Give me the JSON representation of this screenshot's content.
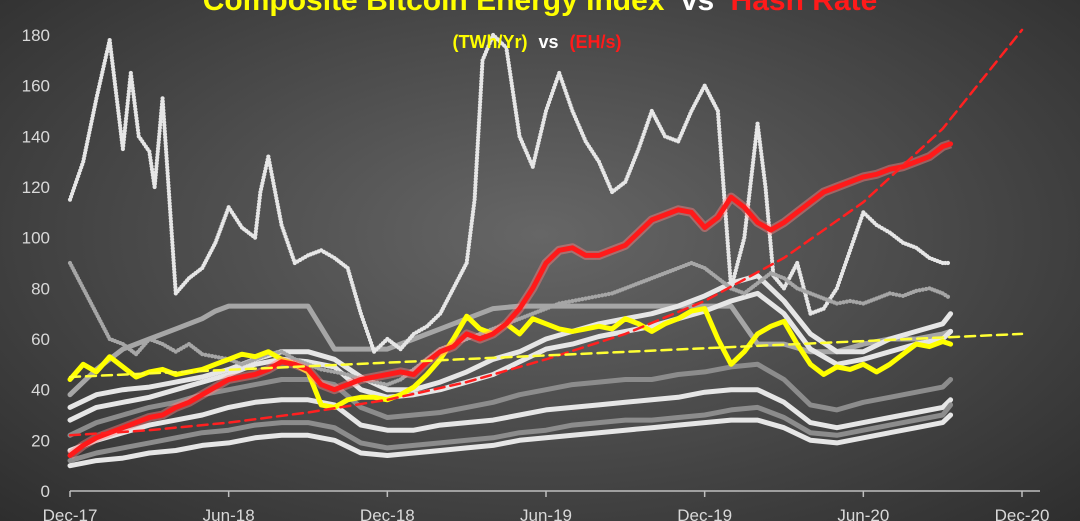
{
  "chart_data": {
    "type": "line",
    "title_part1": "Composite Bitcoin Energy Index",
    "title_vs": "vs",
    "title_part2": "Hash Rate",
    "subtitle_part1": "(TWh/Yr)",
    "subtitle_vs": "vs",
    "subtitle_part2": "(EH/s)",
    "ylim": [
      0,
      180
    ],
    "y_ticks": [
      0,
      20,
      40,
      60,
      80,
      100,
      120,
      140,
      160,
      180
    ],
    "x_ticks": [
      "Dec-17",
      "Jun-18",
      "Dec-18",
      "Jun-19",
      "Dec-19",
      "Jun-20",
      "Dec-20"
    ],
    "xlim_months": [
      0,
      36
    ],
    "grid": false,
    "colors": {
      "composite": "#ffff00",
      "hash_rate": "#ff1a1a",
      "hash_trend": "#ff2020",
      "composite_trend": "#ffff33",
      "components_light": "#e6e6e6",
      "components_mid": "#a6a6a6",
      "components_dark": "#8c8c8c",
      "title_white": "#ffffff",
      "axis": "#bfbfbf"
    },
    "series": [
      {
        "name": "(TWh/Yr)",
        "role": "composite",
        "style": "thick-line",
        "x": [
          0,
          0.5,
          1,
          1.5,
          2,
          2.5,
          3,
          3.5,
          4,
          4.5,
          5,
          5.5,
          6,
          6.5,
          7,
          7.5,
          8,
          8.5,
          9,
          9.5,
          10,
          10.5,
          11,
          11.5,
          12,
          12.5,
          13,
          13.5,
          14,
          14.5,
          15,
          15.5,
          16,
          16.5,
          17,
          17.5,
          18,
          18.5,
          19,
          19.5,
          20,
          20.5,
          21,
          21.5,
          22,
          22.5,
          23,
          23.5,
          24,
          24.5,
          25,
          25.5,
          26,
          26.5,
          27,
          27.5,
          28,
          28.5,
          29,
          29.5,
          30,
          30.5,
          31,
          31.5,
          32,
          32.5,
          33,
          33.3
        ],
        "values": [
          44,
          50,
          47,
          53,
          49,
          45,
          47,
          48,
          46,
          47,
          48,
          50,
          52,
          54,
          53,
          55,
          52,
          50,
          47,
          34,
          33,
          36,
          37,
          37,
          36,
          38,
          41,
          46,
          52,
          60,
          69,
          64,
          62,
          66,
          62,
          68,
          66,
          64,
          63,
          64,
          65,
          64,
          68,
          66,
          63,
          66,
          68,
          71,
          72,
          60,
          50,
          55,
          62,
          65,
          67,
          58,
          50,
          46,
          49,
          48,
          50,
          47,
          50,
          54,
          58,
          57,
          59,
          58
        ]
      },
      {
        "name": "(EH/s)",
        "role": "hash_rate",
        "style": "thick-line",
        "x": [
          0,
          0.5,
          1,
          1.5,
          2,
          2.5,
          3,
          3.5,
          4,
          4.5,
          5,
          5.5,
          6,
          6.5,
          7,
          7.5,
          8,
          8.5,
          9,
          9.5,
          10,
          10.5,
          11,
          11.5,
          12,
          12.5,
          13,
          13.5,
          14,
          14.5,
          15,
          15.5,
          16,
          16.5,
          17,
          17.5,
          18,
          18.5,
          19,
          19.5,
          20,
          20.5,
          21,
          21.5,
          22,
          22.5,
          23,
          23.5,
          24,
          24.5,
          25,
          25.5,
          26,
          26.5,
          27,
          27.5,
          28,
          28.5,
          29,
          29.5,
          30,
          30.5,
          31,
          31.5,
          32,
          32.5,
          33,
          33.3
        ],
        "values": [
          14,
          18,
          21,
          23,
          25,
          27,
          29,
          30,
          33,
          35,
          38,
          41,
          44,
          45,
          46,
          48,
          51,
          50,
          48,
          42,
          40,
          42,
          44,
          45,
          46,
          47,
          46,
          51,
          55,
          57,
          62,
          60,
          62,
          66,
          72,
          80,
          90,
          95,
          96,
          93,
          93,
          95,
          97,
          102,
          107,
          109,
          111,
          110,
          104,
          108,
          116,
          112,
          106,
          103,
          106,
          110,
          114,
          118,
          120,
          122,
          124,
          125,
          127,
          128,
          130,
          132,
          136,
          137
        ]
      },
      {
        "name": "",
        "role": "hash_trend",
        "style": "dashed",
        "x": [
          0,
          3,
          6,
          9,
          12,
          15,
          18,
          21,
          24,
          27,
          30,
          33,
          36
        ],
        "values": [
          22,
          24,
          27,
          31,
          36,
          43,
          52,
          62,
          75,
          92,
          114,
          143,
          182
        ]
      },
      {
        "name": "",
        "role": "composite_trend",
        "style": "dashed",
        "x": [
          0,
          36
        ],
        "values": [
          45,
          62
        ]
      },
      {
        "name": "",
        "role": "component",
        "style": "thick-line",
        "shade": "mid",
        "x": [
          0,
          1,
          2,
          3,
          4,
          5,
          5.5,
          6,
          7,
          8,
          9,
          10,
          11,
          12,
          13,
          14,
          15,
          16,
          17,
          18,
          19,
          20,
          21,
          22,
          23,
          24,
          25,
          26,
          27,
          28,
          29,
          30,
          31,
          32,
          33,
          33.3
        ],
        "values": [
          38,
          48,
          56,
          60,
          64,
          68,
          71,
          73,
          73,
          73,
          73,
          56,
          56,
          56,
          60,
          64,
          68,
          72,
          73,
          73,
          73,
          73,
          73,
          73,
          73,
          73,
          73,
          58,
          58,
          55,
          55,
          58,
          60,
          60,
          62,
          63
        ]
      },
      {
        "name": "",
        "role": "component",
        "style": "thick-line",
        "shade": "light",
        "x": [
          0,
          1,
          2,
          3,
          4,
          5,
          6,
          7,
          8,
          9,
          10,
          11,
          12,
          13,
          14,
          15,
          16,
          17,
          18,
          19,
          20,
          21,
          22,
          23,
          24,
          25,
          26,
          27,
          28,
          29,
          30,
          31,
          32,
          33,
          33.3
        ],
        "values": [
          33,
          38,
          40,
          41,
          43,
          45,
          48,
          52,
          55,
          55,
          52,
          45,
          40,
          40,
          43,
          47,
          52,
          55,
          60,
          63,
          66,
          68,
          70,
          73,
          77,
          82,
          85,
          75,
          62,
          55,
          55,
          60,
          63,
          66,
          70
        ]
      },
      {
        "name": "",
        "role": "component",
        "style": "thick-line",
        "shade": "light",
        "x": [
          0,
          1,
          2,
          3,
          4,
          5,
          6,
          7,
          8,
          9,
          10,
          11,
          12,
          13,
          14,
          15,
          16,
          17,
          18,
          19,
          20,
          21,
          22,
          23,
          24,
          25,
          26,
          27,
          28,
          29,
          30,
          31,
          32,
          33,
          33.3
        ],
        "values": [
          28,
          33,
          35,
          37,
          40,
          43,
          46,
          50,
          52,
          51,
          49,
          40,
          37,
          38,
          40,
          43,
          46,
          51,
          56,
          58,
          61,
          63,
          65,
          68,
          71,
          75,
          78,
          70,
          56,
          50,
          52,
          55,
          58,
          60,
          63
        ]
      },
      {
        "name": "",
        "role": "component",
        "style": "thick-line",
        "shade": "dark",
        "x": [
          0,
          1,
          2,
          3,
          4,
          5,
          6,
          7,
          8,
          9,
          10,
          11,
          12,
          13,
          14,
          15,
          16,
          17,
          18,
          19,
          20,
          21,
          22,
          23,
          24,
          25,
          26,
          27,
          28,
          29,
          30,
          31,
          32,
          33,
          33.3
        ],
        "values": [
          22,
          27,
          30,
          33,
          35,
          38,
          40,
          42,
          44,
          44,
          42,
          33,
          29,
          30,
          31,
          33,
          35,
          38,
          40,
          42,
          43,
          44,
          44,
          46,
          47,
          49,
          50,
          44,
          34,
          32,
          35,
          37,
          39,
          41,
          44
        ]
      },
      {
        "name": "",
        "role": "component",
        "style": "thick-line",
        "shade": "light",
        "x": [
          0,
          1,
          2,
          3,
          4,
          5,
          6,
          7,
          8,
          9,
          10,
          11,
          12,
          13,
          14,
          15,
          16,
          17,
          18,
          19,
          20,
          21,
          22,
          23,
          24,
          25,
          26,
          27,
          28,
          29,
          30,
          31,
          32,
          33,
          33.3
        ],
        "values": [
          16,
          20,
          23,
          26,
          28,
          30,
          33,
          35,
          36,
          36,
          34,
          26,
          24,
          24,
          26,
          27,
          28,
          30,
          32,
          33,
          34,
          35,
          36,
          37,
          39,
          40,
          40,
          35,
          27,
          25,
          27,
          29,
          31,
          33,
          36
        ]
      },
      {
        "name": "",
        "role": "component",
        "style": "thick-line",
        "shade": "dark",
        "x": [
          0,
          1,
          2,
          3,
          4,
          5,
          6,
          7,
          8,
          9,
          10,
          11,
          12,
          13,
          14,
          15,
          16,
          17,
          18,
          19,
          20,
          21,
          22,
          23,
          24,
          25,
          26,
          27,
          28,
          29,
          30,
          31,
          32,
          33,
          33.3
        ],
        "values": [
          12,
          15,
          17,
          19,
          21,
          23,
          24,
          26,
          27,
          27,
          25,
          19,
          17,
          18,
          19,
          20,
          21,
          23,
          24,
          26,
          27,
          28,
          28,
          29,
          30,
          32,
          33,
          29,
          23,
          22,
          24,
          26,
          28,
          30,
          34
        ]
      },
      {
        "name": "",
        "role": "component",
        "style": "thick-line",
        "shade": "light",
        "x": [
          0,
          1,
          2,
          3,
          4,
          5,
          6,
          7,
          8,
          9,
          10,
          11,
          12,
          13,
          14,
          15,
          16,
          17,
          18,
          19,
          20,
          21,
          22,
          23,
          24,
          25,
          26,
          27,
          28,
          29,
          30,
          31,
          32,
          33,
          33.3
        ],
        "values": [
          10,
          12,
          13,
          15,
          16,
          18,
          19,
          21,
          22,
          22,
          20,
          15,
          14,
          15,
          16,
          17,
          18,
          20,
          21,
          22,
          23,
          24,
          25,
          26,
          27,
          28,
          28,
          25,
          20,
          19,
          21,
          23,
          25,
          27,
          30
        ]
      },
      {
        "name": "",
        "role": "component",
        "style": "dotted",
        "shade": "light",
        "x": [
          0,
          0.5,
          1,
          1.5,
          2,
          2.3,
          2.6,
          3,
          3.2,
          3.5,
          4,
          4.5,
          5,
          5.5,
          6,
          6.5,
          7,
          7.2,
          7.5,
          8,
          8.5,
          9,
          9.5,
          10,
          10.5,
          11,
          11.5,
          12,
          12.5,
          13,
          13.5,
          14,
          14.5,
          15,
          15.3,
          15.6,
          16,
          16.5,
          17,
          17.5,
          18,
          18.5,
          19,
          19.5,
          20,
          20.5,
          21,
          21.5,
          22,
          22.5,
          23,
          23.5,
          24,
          24.5,
          25,
          25.5,
          26,
          26.3,
          26.6,
          27,
          27.5,
          28,
          28.5,
          29,
          29.5,
          30,
          30.5,
          31,
          31.5,
          32,
          32.5,
          33,
          33.3
        ],
        "values": [
          115,
          130,
          155,
          178,
          135,
          165,
          140,
          134,
          120,
          155,
          78,
          84,
          88,
          98,
          112,
          104,
          100,
          118,
          132,
          105,
          90,
          93,
          95,
          92,
          88,
          70,
          55,
          60,
          56,
          62,
          65,
          70,
          80,
          90,
          115,
          170,
          180,
          175,
          140,
          128,
          150,
          165,
          150,
          138,
          130,
          118,
          122,
          135,
          150,
          140,
          138,
          150,
          160,
          150,
          80,
          100,
          145,
          120,
          85,
          80,
          90,
          70,
          72,
          80,
          95,
          110,
          105,
          102,
          98,
          96,
          92,
          90,
          90
        ]
      },
      {
        "name": "",
        "role": "component",
        "style": "dotted",
        "shade": "mid",
        "x": [
          0,
          0.5,
          1,
          1.5,
          2,
          2.5,
          3,
          3.5,
          4,
          4.5,
          5,
          5.5,
          6,
          6.5,
          7,
          7.5,
          8,
          8.5,
          9,
          9.5,
          10,
          10.5,
          11,
          11.5,
          12,
          12.5,
          13,
          13.5,
          14,
          14.5,
          15,
          15.5,
          16,
          16.5,
          17,
          17.5,
          18,
          18.5,
          19,
          19.5,
          20,
          20.5,
          21,
          21.5,
          22,
          22.5,
          23,
          23.5,
          24,
          24.5,
          25,
          25.5,
          26,
          26.5,
          27,
          27.5,
          28,
          28.5,
          29,
          29.5,
          30,
          30.5,
          31,
          31.5,
          32,
          32.5,
          33,
          33.3
        ],
        "values": [
          90,
          80,
          70,
          60,
          58,
          54,
          60,
          58,
          55,
          58,
          54,
          53,
          52,
          50,
          52,
          54,
          55,
          52,
          50,
          48,
          47,
          46,
          44,
          43,
          42,
          44,
          48,
          52,
          56,
          58,
          60,
          62,
          64,
          66,
          68,
          70,
          72,
          74,
          75,
          76,
          77,
          78,
          80,
          82,
          84,
          86,
          88,
          90,
          88,
          84,
          80,
          78,
          82,
          86,
          84,
          80,
          78,
          76,
          74,
          75,
          74,
          76,
          78,
          77,
          79,
          80,
          78,
          76
        ]
      }
    ]
  }
}
